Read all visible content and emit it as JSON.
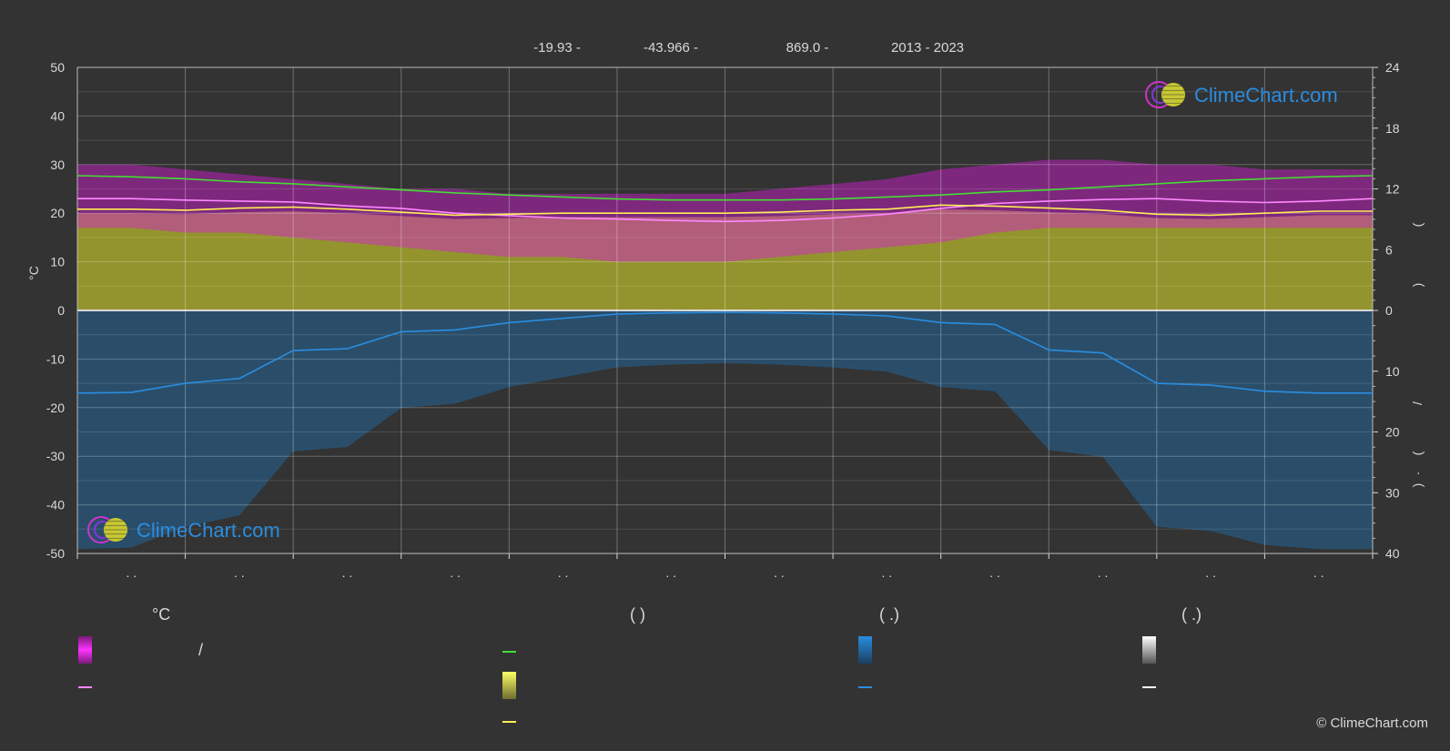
{
  "header": {
    "lat": "-19.93 -",
    "lon": "-43.966 -",
    "elev": "869.0 -",
    "years": "2013 - 2023"
  },
  "brand": {
    "name": "ClimeChart.com",
    "copyright": "© ClimeChart.com"
  },
  "legend": {
    "col1_title": "°C",
    "col1_slash": "/",
    "col2_title": "(          )",
    "col3_title": "(   .)",
    "col4_title": "(   .)"
  },
  "colors": {
    "background": "#333333",
    "temp_band": "#d61ad6",
    "mean_temp_line": "#ff88ff",
    "daylight_line": "#44dd33",
    "sunshine_band": "#a6a62e",
    "sunshine_line": "#ffee55",
    "rain_band": "#1f6fae",
    "rain_line": "#2a8de0",
    "snow_line": "#ffffff",
    "brand_blue": "#2a8de0"
  },
  "chart_data": {
    "type": "line",
    "left_axis": {
      "ylabel": "°C",
      "ylim": [
        -50,
        50
      ],
      "ticks": [
        "50",
        "40",
        "30",
        "20",
        "10",
        "0",
        "-10",
        "-20",
        "-30",
        "-40",
        "-50"
      ]
    },
    "right_axis_top": {
      "ylim": [
        0,
        24
      ],
      "ticks": [
        "24",
        "18",
        "12",
        "6",
        "0"
      ],
      "label_glyphs": [
        "(",
        ")"
      ]
    },
    "right_axis_bottom": {
      "ylim": [
        0,
        40
      ],
      "ticks": [
        "0",
        "10",
        "20",
        "30",
        "40"
      ],
      "label_glyphs": [
        "(",
        "·",
        ")",
        "/"
      ]
    },
    "month_labels": [
      ". .",
      ". .",
      ". .",
      ". .",
      ". .",
      ". .",
      ". .",
      ". .",
      ". .",
      ". .",
      ". .",
      ". ."
    ],
    "x": [
      0,
      0.5,
      1,
      1.5,
      2,
      2.5,
      3,
      3.5,
      4,
      4.5,
      5,
      5.5,
      6,
      6.5,
      7,
      7.5,
      8,
      8.5,
      9,
      9.5,
      10,
      10.5,
      11,
      11.5,
      12
    ],
    "series": [
      {
        "key": "daylight",
        "axis": "right_top",
        "values": [
          13.3,
          13.2,
          13.0,
          12.7,
          12.5,
          12.2,
          11.9,
          11.6,
          11.4,
          11.2,
          11.0,
          10.9,
          10.9,
          10.9,
          11.0,
          11.2,
          11.4,
          11.7,
          11.9,
          12.2,
          12.5,
          12.8,
          13.0,
          13.2,
          13.3
        ]
      },
      {
        "key": "mean_temp",
        "axis": "left",
        "values": [
          23.0,
          23.0,
          22.7,
          22.5,
          22.3,
          21.5,
          21.0,
          20.0,
          19.5,
          19.0,
          18.8,
          18.5,
          18.3,
          18.5,
          19.0,
          19.8,
          21.0,
          22.0,
          22.5,
          22.8,
          23.0,
          22.5,
          22.2,
          22.5,
          23.0
        ]
      },
      {
        "key": "sunshine",
        "axis": "right_top",
        "values": [
          10.0,
          10.0,
          9.9,
          10.1,
          10.2,
          10.0,
          9.7,
          9.4,
          9.5,
          9.6,
          9.6,
          9.6,
          9.6,
          9.7,
          9.9,
          10.0,
          10.4,
          10.3,
          10.1,
          9.9,
          9.5,
          9.4,
          9.6,
          9.8,
          9.8
        ]
      },
      {
        "key": "rain",
        "axis": "right_bottom",
        "values": [
          13.6,
          13.5,
          12.0,
          11.2,
          6.6,
          6.3,
          3.5,
          3.2,
          2.0,
          1.3,
          0.6,
          0.4,
          0.3,
          0.4,
          0.6,
          0.9,
          2.0,
          2.3,
          6.5,
          7.0,
          12.0,
          12.3,
          13.3,
          13.6,
          13.6
        ]
      }
    ],
    "bands": {
      "temp_max_top": [
        30,
        30,
        29,
        28,
        27,
        26,
        25,
        25,
        24,
        24,
        24,
        24,
        24,
        25,
        26,
        27,
        29,
        30,
        31,
        31,
        30,
        30,
        29,
        29,
        29
      ],
      "temp_min_bottom": [
        17,
        17,
        16,
        16,
        15,
        14,
        13,
        12,
        11,
        11,
        10,
        10,
        10,
        11,
        12,
        13,
        14,
        16,
        17,
        17,
        17,
        17,
        17,
        17,
        17
      ]
    }
  }
}
